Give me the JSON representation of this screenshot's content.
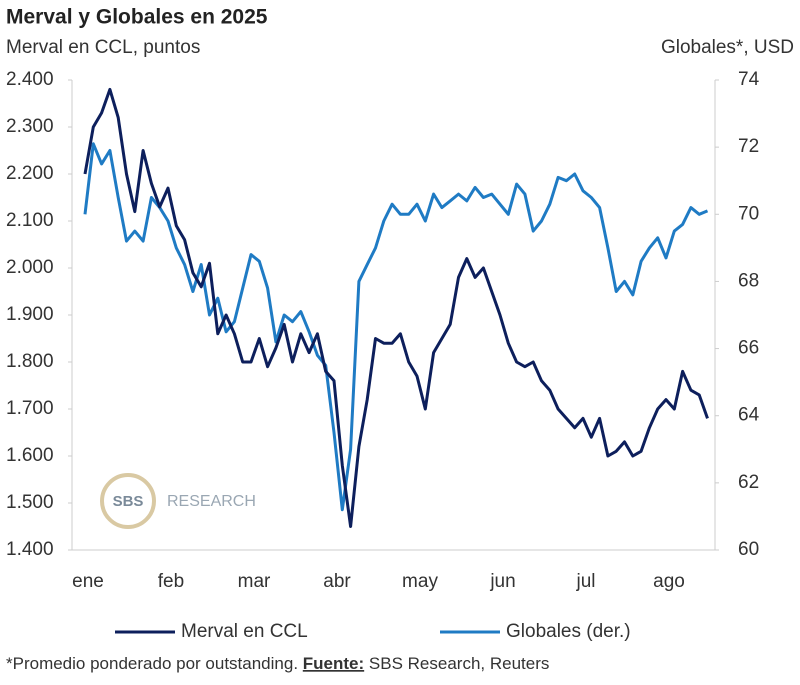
{
  "chart_data": {
    "type": "line",
    "title": "Merval y Globales en 2025",
    "y_label": "Merval en CCL, puntos",
    "y2_label": "Globales*, USD",
    "categories": [
      "ene",
      null,
      null,
      null,
      null,
      null,
      null,
      null,
      null,
      null,
      "feb",
      null,
      null,
      null,
      null,
      null,
      null,
      null,
      null,
      null,
      "mar",
      null,
      null,
      null,
      null,
      null,
      null,
      null,
      null,
      null,
      "abr",
      null,
      null,
      null,
      null,
      null,
      null,
      null,
      null,
      null,
      "may",
      null,
      null,
      null,
      null,
      null,
      null,
      null,
      null,
      null,
      "jun",
      null,
      null,
      null,
      null,
      null,
      null,
      null,
      null,
      null,
      "jul",
      null,
      null,
      null,
      null,
      null,
      null,
      null,
      null,
      null,
      "ago",
      null,
      null,
      null,
      null,
      null
    ],
    "series": [
      {
        "name": "Merval en CCL",
        "color": "#0d1f5c",
        "axis": "y",
        "values": [
          2200,
          2300,
          2330,
          2380,
          2320,
          2200,
          2120,
          2250,
          2180,
          2130,
          2170,
          2090,
          2060,
          1990,
          1960,
          2010,
          1860,
          1900,
          1860,
          1800,
          1800,
          1850,
          1790,
          1830,
          1880,
          1800,
          1860,
          1820,
          1860,
          1780,
          1760,
          1580,
          1450,
          1620,
          1720,
          1850,
          1840,
          1840,
          1860,
          1800,
          1770,
          1700,
          1820,
          1850,
          1880,
          1980,
          2020,
          1980,
          2000,
          1950,
          1900,
          1840,
          1800,
          1790,
          1800,
          1760,
          1740,
          1700,
          1680,
          1660,
          1680,
          1640,
          1680,
          1600,
          1610,
          1630,
          1600,
          1610,
          1660,
          1700,
          1720,
          1700,
          1780,
          1740,
          1730,
          1680
        ]
      },
      {
        "name": "Globales (der.)",
        "color": "#1f7bc4",
        "axis": "y2",
        "values": [
          70,
          72.1,
          71.5,
          71.9,
          70.5,
          69.2,
          69.5,
          69.2,
          70.5,
          70.2,
          69.8,
          69,
          68.5,
          67.7,
          68.5,
          67,
          67.5,
          66.5,
          66.8,
          67.8,
          68.8,
          68.6,
          67.8,
          66.2,
          67,
          66.8,
          67.1,
          66.5,
          65.8,
          65.5,
          63.5,
          61.2,
          63,
          68,
          68.5,
          69,
          69.8,
          70.3,
          70,
          70,
          70.3,
          69.8,
          70.6,
          70.2,
          70.4,
          70.6,
          70.4,
          70.8,
          70.5,
          70.6,
          70.3,
          70,
          70.9,
          70.6,
          69.5,
          69.8,
          70.3,
          71.1,
          71,
          71.2,
          70.7,
          70.5,
          70.2,
          69,
          67.7,
          68,
          67.6,
          68.6,
          69,
          69.3,
          68.7,
          69.5,
          69.7,
          70.2,
          70,
          70.1
        ]
      }
    ],
    "ylim": [
      1400,
      2400
    ],
    "yticks": [
      {
        "value": 1400,
        "label": "1.400"
      },
      {
        "value": 1500,
        "label": "1.500"
      },
      {
        "value": 1600,
        "label": "1.600"
      },
      {
        "value": 1700,
        "label": "1.700"
      },
      {
        "value": 1800,
        "label": "1.800"
      },
      {
        "value": 1900,
        "label": "1.900"
      },
      {
        "value": 2000,
        "label": "2.000"
      },
      {
        "value": 2100,
        "label": "2.100"
      },
      {
        "value": 2200,
        "label": "2.200"
      },
      {
        "value": 2300,
        "label": "2.300"
      },
      {
        "value": 2400,
        "label": "2.400"
      }
    ],
    "y2lim": [
      60,
      74
    ],
    "y2ticks": [
      60,
      62,
      64,
      66,
      68,
      70,
      72,
      74
    ],
    "grid": false,
    "legend": "bottom",
    "watermark": {
      "mark": "SBS",
      "text": "RESEARCH"
    },
    "footnote": {
      "note": "*Promedio ponderado por outstanding.",
      "source_label": "Fuente:",
      "source": "SBS Research, Reuters"
    }
  }
}
